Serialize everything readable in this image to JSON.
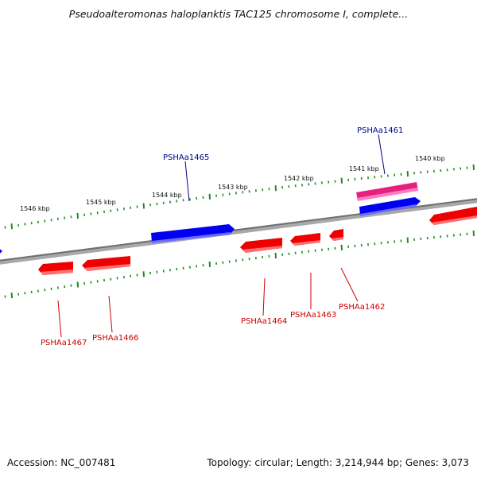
{
  "title": "Pseudoalteromonas haloplanktis TAC125 chromosome I, complete...",
  "footer": {
    "accession": "Accession: NC_007481",
    "summary": "Topology: circular; Length: 3,214,944 bp; Genes: 3,073"
  },
  "colors": {
    "plus_strand_gene": "#0000ee",
    "minus_strand_gene": "#ee0000",
    "rna_gene": "#ee2090",
    "plus_label": "#00008b",
    "minus_label": "#cc0000",
    "backbone": "#808080",
    "tick": "#228b22"
  },
  "scale_labels": [
    "1546 kbp",
    "1545 kbp",
    "1544 kbp",
    "1543 kbp",
    "1542 kbp",
    "1541 kbp",
    "1540 kbp"
  ],
  "gene_labels": {
    "PSHAa1461": "PSHAa1461",
    "PSHAa1465": "PSHAa1465",
    "PSHAa1467": "PSHAa1467",
    "PSHAa1466": "PSHAa1466",
    "PSHAa1464": "PSHAa1464",
    "PSHAa1463": "PSHAa1463",
    "PSHAa1462": "PSHAa1462"
  }
}
